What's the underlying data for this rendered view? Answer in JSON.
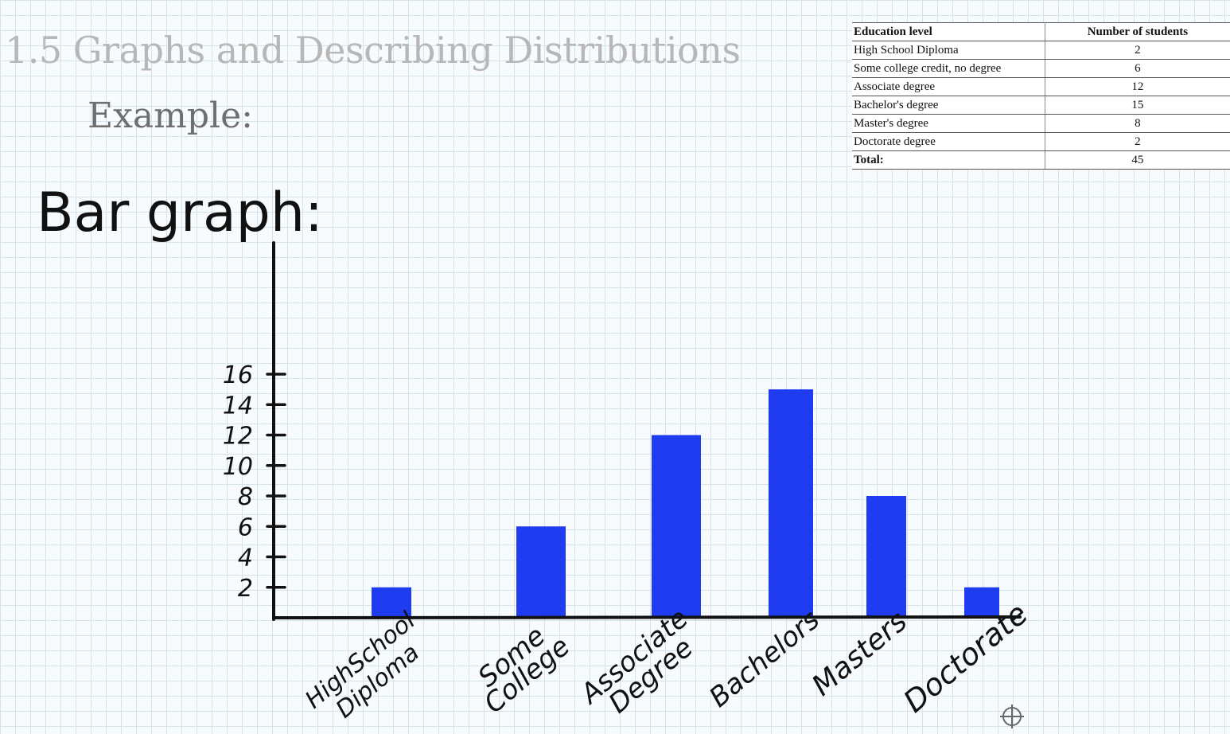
{
  "page": {
    "title": "1.5 Graphs and Describing Distributions",
    "example_label": "Example:",
    "graph_label": "Bar graph:"
  },
  "table": {
    "headers": [
      "Education level",
      "Number of students"
    ],
    "rows": [
      {
        "level": "High School Diploma",
        "count": "2"
      },
      {
        "level": "Some college credit, no degree",
        "count": "6"
      },
      {
        "level": "Associate degree",
        "count": "12"
      },
      {
        "level": "Bachelor's degree",
        "count": "15"
      },
      {
        "level": "Master's degree",
        "count": "8"
      },
      {
        "level": "Doctorate degree",
        "count": "2"
      }
    ],
    "total_label": "Total:",
    "total_value": "45"
  },
  "chart_data": {
    "type": "bar",
    "categories": [
      [
        "HighSchool",
        "Diploma"
      ],
      [
        "Some",
        "College"
      ],
      [
        "Associate",
        "Degree"
      ],
      [
        "Bachelors"
      ],
      [
        "Masters"
      ],
      [
        "Doctorate"
      ]
    ],
    "values": [
      2,
      6,
      12,
      15,
      8,
      2
    ],
    "yticks": [
      2,
      4,
      6,
      8,
      10,
      12,
      14,
      16
    ],
    "ylim": [
      0,
      16
    ],
    "bar_color": "#1f3cf0",
    "axis_color": "#111111",
    "grid": true
  }
}
